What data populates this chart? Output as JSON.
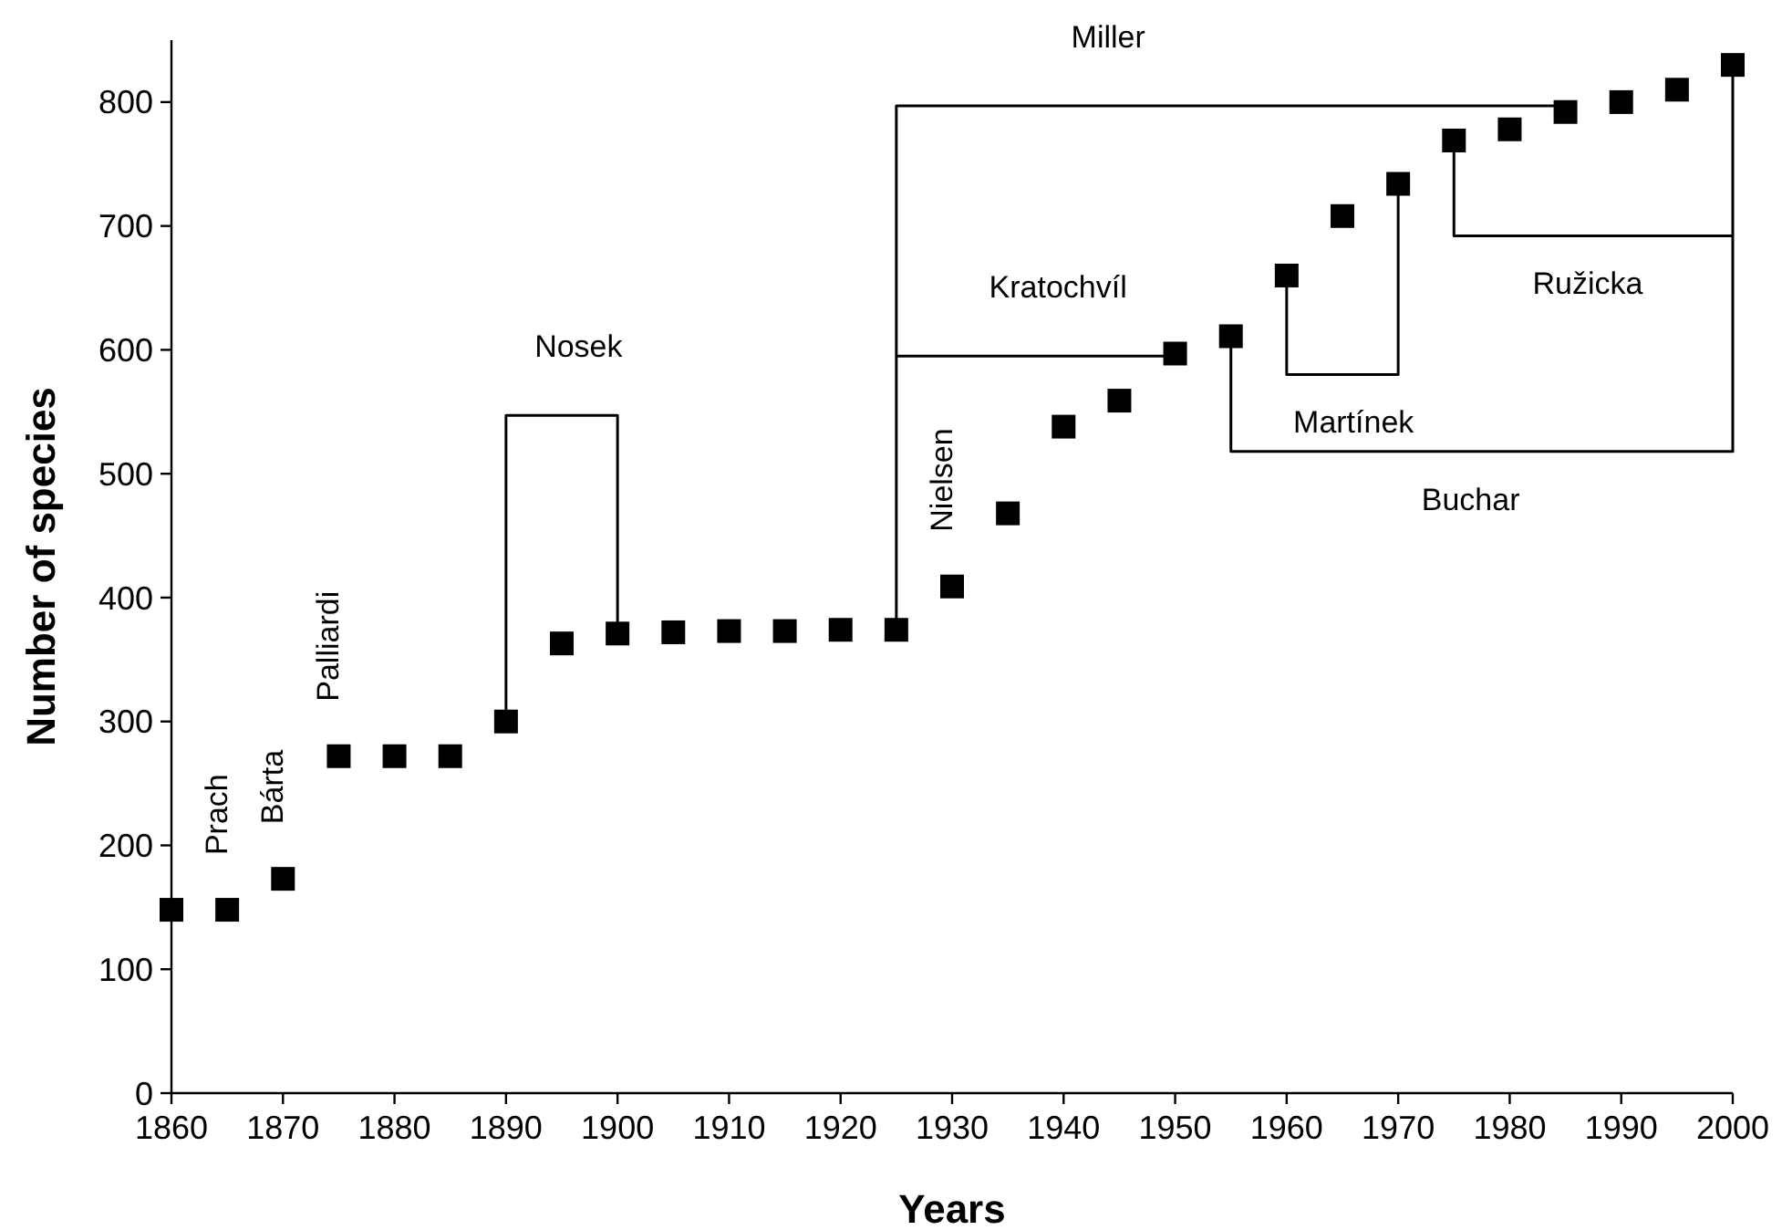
{
  "chart_data": {
    "type": "scatter",
    "xlabel": "Years",
    "ylabel": "Number of species",
    "xlim": [
      1860,
      2000
    ],
    "xticks": [
      1860,
      1870,
      1880,
      1890,
      1900,
      1910,
      1920,
      1930,
      1940,
      1950,
      1960,
      1970,
      1980,
      1990,
      2000
    ],
    "ylim": [
      0,
      850
    ],
    "yticks": [
      0,
      100,
      200,
      300,
      400,
      500,
      600,
      700,
      800
    ],
    "series": [
      {
        "marker": "square",
        "color": "#000000",
        "x": [
          1860,
          1865,
          1870,
          1875,
          1880,
          1885,
          1890,
          1895,
          1900,
          1905,
          1910,
          1915,
          1920,
          1925,
          1930,
          1935,
          1940,
          1945,
          1950,
          1955,
          1960,
          1965,
          1970,
          1975,
          1980,
          1985,
          1990,
          1995,
          2000
        ],
        "values": [
          148,
          148,
          173,
          272,
          272,
          272,
          300,
          363,
          371,
          372,
          373,
          373,
          374,
          374,
          409,
          468,
          538,
          559,
          597,
          611,
          660,
          708,
          734,
          769,
          778,
          792,
          800,
          810,
          830
        ]
      },
      {
        "type": "line",
        "marker": "none",
        "line_style": "solid",
        "color": "#000000",
        "x": [
          1890,
          1890,
          1900,
          1900
        ],
        "values": [
          300,
          547,
          547,
          371
        ]
      },
      {
        "type": "line",
        "marker": "none",
        "line_style": "solid",
        "color": "#000000",
        "x": [
          1925,
          1925,
          1985
        ],
        "values": [
          374,
          797,
          797
        ]
      },
      {
        "type": "line",
        "marker": "none",
        "line_style": "solid",
        "color": "#000000",
        "x": [
          1925,
          1950
        ],
        "values": [
          595,
          595
        ]
      },
      {
        "type": "line",
        "marker": "none",
        "line_style": "solid",
        "color": "#000000",
        "x": [
          1960,
          1960,
          1970,
          1970
        ],
        "values": [
          660,
          580,
          580,
          734
        ]
      },
      {
        "type": "line",
        "marker": "none",
        "line_style": "solid",
        "color": "#000000",
        "x": [
          1975,
          1975,
          2000
        ],
        "values": [
          769,
          692,
          692
        ]
      },
      {
        "type": "line",
        "marker": "none",
        "line_style": "solid",
        "color": "#000000",
        "x": [
          1955,
          1955,
          2000,
          2000
        ],
        "values": [
          611,
          518,
          518,
          830
        ]
      }
    ],
    "annotations": [
      {
        "text": "Nosek",
        "x": 1896.5,
        "y": 547
      },
      {
        "text": "Miller",
        "x": 1944,
        "y": 797
      },
      {
        "text": "Kratochvíl",
        "x": 1939.5,
        "y": 595
      },
      {
        "text": "Martínek",
        "x": 1966,
        "y": 580
      },
      {
        "text": "Ružicka",
        "x": 1987,
        "y": 692
      },
      {
        "text": "Buchar",
        "x": 1976.5,
        "y": 518
      },
      {
        "text": "Prach",
        "x": 1865,
        "y": 148
      },
      {
        "text": "Bárta",
        "x": 1870,
        "y": 173
      },
      {
        "text": "Palliardi",
        "x": 1875,
        "y": 272
      },
      {
        "text": "Nielsen",
        "x": 1930,
        "y": 409
      }
    ]
  }
}
